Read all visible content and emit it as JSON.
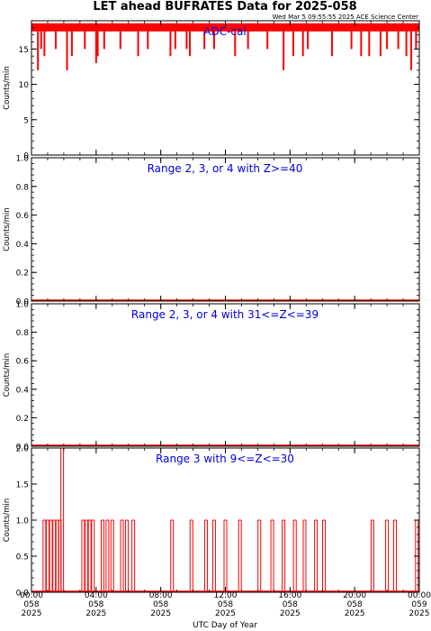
{
  "header": {
    "title": "LET ahead BUFRATES Data for 2025-058",
    "timestamp": "Wed Mar  5 09:55:55 2025 ACE Science Center"
  },
  "colors": {
    "data": "#ff0000",
    "title": "#0000dd",
    "axis": "#000000"
  },
  "chart_data": [
    {
      "type": "bar",
      "title": "ADC-cal",
      "ylabel": "Counts/min",
      "ylim": [
        0,
        19
      ],
      "yticks": [
        0,
        5,
        10,
        15
      ],
      "ytick_labels": [
        "0",
        "5",
        "10",
        "15"
      ],
      "x_range_hours": [
        0,
        24
      ],
      "baseline": 18,
      "events": [
        {
          "x": 0.4,
          "y": 12
        },
        {
          "x": 0.6,
          "y": 15
        },
        {
          "x": 0.8,
          "y": 14
        },
        {
          "x": 1.5,
          "y": 15
        },
        {
          "x": 2.2,
          "y": 12
        },
        {
          "x": 2.5,
          "y": 14
        },
        {
          "x": 3.3,
          "y": 15
        },
        {
          "x": 4.0,
          "y": 13
        },
        {
          "x": 4.1,
          "y": 14
        },
        {
          "x": 4.5,
          "y": 15
        },
        {
          "x": 5.5,
          "y": 15
        },
        {
          "x": 6.6,
          "y": 14
        },
        {
          "x": 7.2,
          "y": 15
        },
        {
          "x": 8.6,
          "y": 14
        },
        {
          "x": 8.9,
          "y": 15
        },
        {
          "x": 9.6,
          "y": 15
        },
        {
          "x": 9.8,
          "y": 14
        },
        {
          "x": 10.7,
          "y": 15
        },
        {
          "x": 11.3,
          "y": 15
        },
        {
          "x": 12.6,
          "y": 14
        },
        {
          "x": 13.4,
          "y": 15
        },
        {
          "x": 14.6,
          "y": 15
        },
        {
          "x": 15.6,
          "y": 12
        },
        {
          "x": 16.2,
          "y": 14
        },
        {
          "x": 16.8,
          "y": 14
        },
        {
          "x": 17.1,
          "y": 15
        },
        {
          "x": 18.6,
          "y": 14
        },
        {
          "x": 19.8,
          "y": 15
        },
        {
          "x": 20.4,
          "y": 14
        },
        {
          "x": 20.9,
          "y": 14
        },
        {
          "x": 21.6,
          "y": 14
        },
        {
          "x": 22.0,
          "y": 15
        },
        {
          "x": 22.7,
          "y": 15
        },
        {
          "x": 23.2,
          "y": 14
        },
        {
          "x": 23.5,
          "y": 12
        },
        {
          "x": 23.8,
          "y": 15
        }
      ]
    },
    {
      "type": "bar",
      "title": "Range 2, 3, or 4 with Z>=40",
      "ylabel": "Counts/min",
      "ylim": [
        0,
        1
      ],
      "yticks": [
        0,
        0.2,
        0.4,
        0.6,
        0.8,
        1.0
      ],
      "ytick_labels": [
        "0.0",
        "0.2",
        "0.4",
        "0.6",
        "0.8",
        "1.0"
      ],
      "x_range_hours": [
        0,
        24
      ],
      "baseline": 0,
      "events": []
    },
    {
      "type": "bar",
      "title": "Range 2, 3, or 4 with 31<=Z<=39",
      "ylabel": "Counts/min",
      "ylim": [
        0,
        1
      ],
      "yticks": [
        0,
        0.2,
        0.4,
        0.6,
        0.8,
        1.0
      ],
      "ytick_labels": [
        "0.0",
        "0.2",
        "0.4",
        "0.6",
        "0.8",
        "1.0"
      ],
      "x_range_hours": [
        0,
        24
      ],
      "baseline": 0,
      "events": []
    },
    {
      "type": "bar",
      "title": "Range 3 with 9<=Z<=30",
      "ylabel": "Counts/min",
      "ylim": [
        0,
        2
      ],
      "yticks": [
        0,
        0.5,
        1.0,
        1.5,
        2.0
      ],
      "ytick_labels": [
        "0.0",
        "0.5",
        "1.0",
        "1.5",
        "2.0"
      ],
      "x_range_hours": [
        0,
        24
      ],
      "baseline": 0,
      "events": [
        {
          "x": 0.8,
          "y": 1
        },
        {
          "x": 1.0,
          "y": 1
        },
        {
          "x": 1.2,
          "y": 1
        },
        {
          "x": 1.4,
          "y": 1
        },
        {
          "x": 1.6,
          "y": 1
        },
        {
          "x": 1.75,
          "y": 1
        },
        {
          "x": 1.9,
          "y": 2
        },
        {
          "x": 3.2,
          "y": 1
        },
        {
          "x": 3.4,
          "y": 1
        },
        {
          "x": 3.6,
          "y": 1
        },
        {
          "x": 3.8,
          "y": 1
        },
        {
          "x": 4.4,
          "y": 1
        },
        {
          "x": 4.7,
          "y": 1
        },
        {
          "x": 5.0,
          "y": 1
        },
        {
          "x": 5.6,
          "y": 1
        },
        {
          "x": 5.9,
          "y": 1
        },
        {
          "x": 6.3,
          "y": 1
        },
        {
          "x": 8.7,
          "y": 1
        },
        {
          "x": 9.9,
          "y": 1
        },
        {
          "x": 10.8,
          "y": 1
        },
        {
          "x": 11.3,
          "y": 1
        },
        {
          "x": 12.0,
          "y": 1
        },
        {
          "x": 12.9,
          "y": 1
        },
        {
          "x": 14.1,
          "y": 1
        },
        {
          "x": 14.9,
          "y": 1
        },
        {
          "x": 15.6,
          "y": 1
        },
        {
          "x": 16.3,
          "y": 1
        },
        {
          "x": 16.9,
          "y": 1
        },
        {
          "x": 17.6,
          "y": 1
        },
        {
          "x": 18.1,
          "y": 1
        },
        {
          "x": 21.1,
          "y": 1
        },
        {
          "x": 22.0,
          "y": 1
        },
        {
          "x": 22.5,
          "y": 1
        },
        {
          "x": 23.85,
          "y": 1
        }
      ]
    }
  ],
  "x_axis": {
    "label": "UTC Day of Year",
    "ticks": [
      {
        "hour": 0,
        "time": "00:00",
        "doy": "058",
        "year": "2025"
      },
      {
        "hour": 4,
        "time": "04:00",
        "doy": "058",
        "year": "2025"
      },
      {
        "hour": 8,
        "time": "08:00",
        "doy": "058",
        "year": "2025"
      },
      {
        "hour": 12,
        "time": "12:00",
        "doy": "058",
        "year": "2025"
      },
      {
        "hour": 16,
        "time": "16:00",
        "doy": "058",
        "year": "2025"
      },
      {
        "hour": 20,
        "time": "20:00",
        "doy": "058",
        "year": "2025"
      },
      {
        "hour": 24,
        "time": "00:00",
        "doy": "059",
        "year": "2025"
      }
    ]
  }
}
